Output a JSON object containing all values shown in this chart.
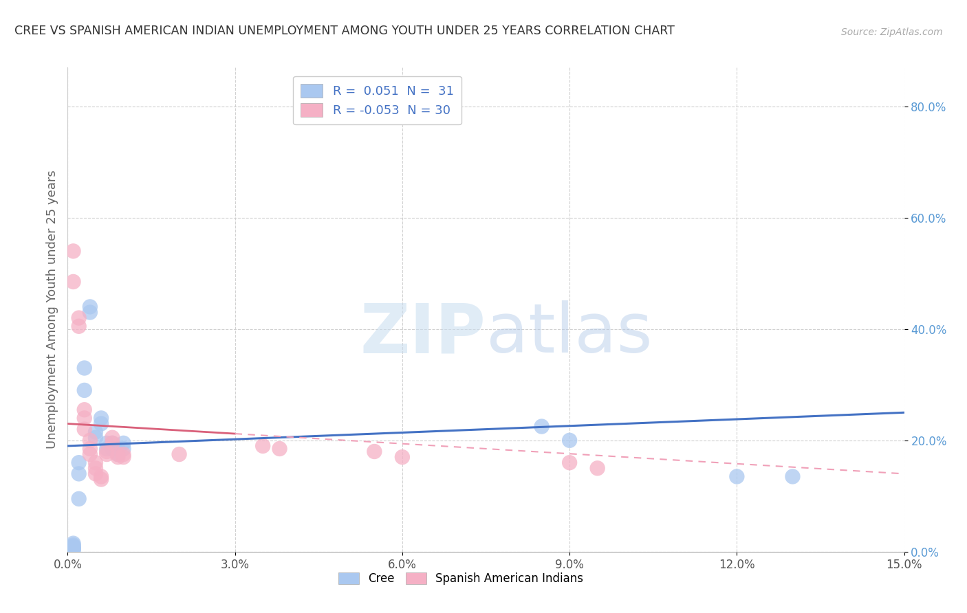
{
  "title": "CREE VS SPANISH AMERICAN INDIAN UNEMPLOYMENT AMONG YOUTH UNDER 25 YEARS CORRELATION CHART",
  "source": "Source: ZipAtlas.com",
  "ylabel": "Unemployment Among Youth under 25 years",
  "xlim": [
    0.0,
    0.15
  ],
  "ylim": [
    0.0,
    0.87
  ],
  "xticks": [
    0.0,
    0.03,
    0.06,
    0.09,
    0.12,
    0.15
  ],
  "xtick_labels": [
    "0.0%",
    "3.0%",
    "6.0%",
    "9.0%",
    "12.0%",
    "15.0%"
  ],
  "yticks": [
    0.0,
    0.2,
    0.4,
    0.6,
    0.8
  ],
  "ytick_labels": [
    "0.0%",
    "20.0%",
    "40.0%",
    "60.0%",
    "80.0%"
  ],
  "cree_R": 0.051,
  "cree_N": 31,
  "spanish_R": -0.053,
  "spanish_N": 30,
  "cree_color": "#aac8f0",
  "spanish_color": "#f5b0c5",
  "cree_line_color": "#4472c4",
  "spanish_line_solid_color": "#d9607a",
  "spanish_line_dash_color": "#f0a0b8",
  "tick_label_color": "#5b9bd5",
  "watermark_color": "#ddeeff",
  "cree_points": [
    [
      0.001,
      0.015
    ],
    [
      0.001,
      0.012
    ],
    [
      0.001,
      0.01
    ],
    [
      0.001,
      0.008
    ],
    [
      0.001,
      0.006
    ],
    [
      0.001,
      0.005
    ],
    [
      0.001,
      0.004
    ],
    [
      0.001,
      0.003
    ],
    [
      0.002,
      0.16
    ],
    [
      0.002,
      0.14
    ],
    [
      0.002,
      0.095
    ],
    [
      0.003,
      0.33
    ],
    [
      0.003,
      0.29
    ],
    [
      0.004,
      0.44
    ],
    [
      0.004,
      0.43
    ],
    [
      0.005,
      0.215
    ],
    [
      0.005,
      0.205
    ],
    [
      0.006,
      0.24
    ],
    [
      0.006,
      0.23
    ],
    [
      0.007,
      0.195
    ],
    [
      0.007,
      0.185
    ],
    [
      0.008,
      0.195
    ],
    [
      0.008,
      0.185
    ],
    [
      0.009,
      0.175
    ],
    [
      0.009,
      0.185
    ],
    [
      0.01,
      0.185
    ],
    [
      0.01,
      0.195
    ],
    [
      0.085,
      0.225
    ],
    [
      0.09,
      0.2
    ],
    [
      0.12,
      0.135
    ],
    [
      0.13,
      0.135
    ]
  ],
  "spanish_points": [
    [
      0.001,
      0.54
    ],
    [
      0.001,
      0.485
    ],
    [
      0.002,
      0.42
    ],
    [
      0.002,
      0.405
    ],
    [
      0.003,
      0.255
    ],
    [
      0.003,
      0.24
    ],
    [
      0.003,
      0.22
    ],
    [
      0.004,
      0.2
    ],
    [
      0.004,
      0.185
    ],
    [
      0.004,
      0.175
    ],
    [
      0.005,
      0.16
    ],
    [
      0.005,
      0.15
    ],
    [
      0.005,
      0.14
    ],
    [
      0.006,
      0.135
    ],
    [
      0.006,
      0.13
    ],
    [
      0.007,
      0.18
    ],
    [
      0.007,
      0.175
    ],
    [
      0.008,
      0.205
    ],
    [
      0.008,
      0.195
    ],
    [
      0.009,
      0.175
    ],
    [
      0.009,
      0.17
    ],
    [
      0.01,
      0.17
    ],
    [
      0.01,
      0.175
    ],
    [
      0.02,
      0.175
    ],
    [
      0.035,
      0.19
    ],
    [
      0.038,
      0.185
    ],
    [
      0.055,
      0.18
    ],
    [
      0.06,
      0.17
    ],
    [
      0.09,
      0.16
    ],
    [
      0.095,
      0.15
    ]
  ],
  "cree_trend": [
    0.19,
    0.25
  ],
  "spanish_trend_solid_end": 0.03,
  "spanish_trend": [
    0.23,
    0.14
  ]
}
